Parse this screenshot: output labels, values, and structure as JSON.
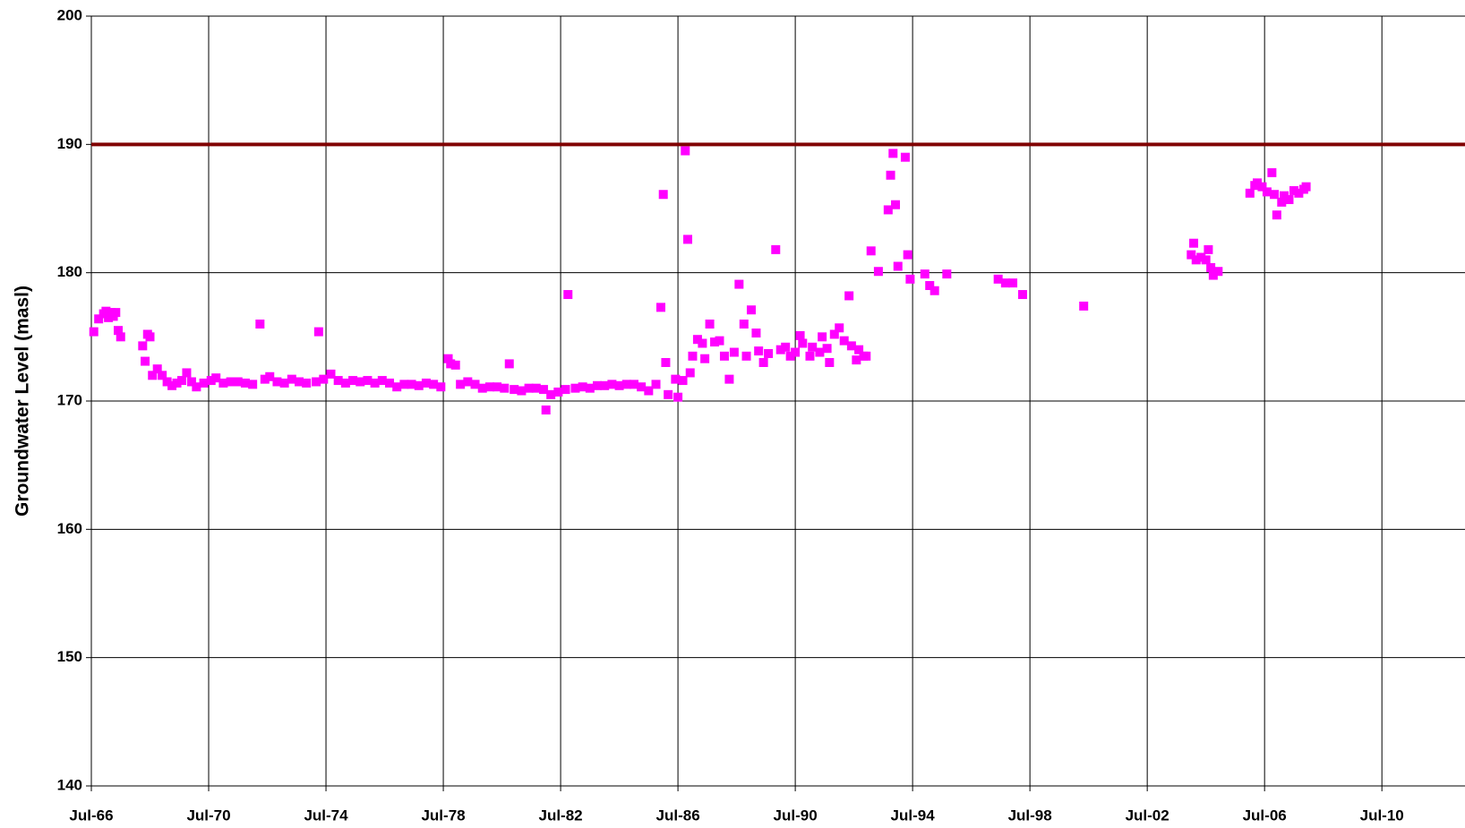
{
  "chart_data": {
    "type": "scatter",
    "y_label": "Groundwater Level (masl)",
    "color": "#ff00ff",
    "reference_line": {
      "value": 190,
      "color": "#800000"
    },
    "grid": true,
    "xlim": [
      "1966-07",
      "2013-05"
    ],
    "xticks": [
      {
        "value": "1966-07",
        "label": "Jul-66"
      },
      {
        "value": "1970-07",
        "label": "Jul-70"
      },
      {
        "value": "1974-07",
        "label": "Jul-74"
      },
      {
        "value": "1978-07",
        "label": "Jul-78"
      },
      {
        "value": "1982-07",
        "label": "Jul-82"
      },
      {
        "value": "1986-07",
        "label": "Jul-86"
      },
      {
        "value": "1990-07",
        "label": "Jul-90"
      },
      {
        "value": "1994-07",
        "label": "Jul-94"
      },
      {
        "value": "1998-07",
        "label": "Jul-98"
      },
      {
        "value": "2002-07",
        "label": "Jul-02"
      },
      {
        "value": "2006-07",
        "label": "Jul-06"
      },
      {
        "value": "2010-07",
        "label": "Jul-10"
      }
    ],
    "ylim": [
      140,
      200
    ],
    "yticks": [
      140,
      150,
      160,
      170,
      180,
      190,
      200
    ],
    "x": [
      "1966-08",
      "1966-10",
      "1966-12",
      "1967-01",
      "1967-02",
      "1967-03",
      "1967-04",
      "1967-05",
      "1967-06",
      "1967-07",
      "1968-04",
      "1968-05",
      "1968-06",
      "1968-07",
      "1968-08",
      "1968-10",
      "1968-12",
      "1969-02",
      "1969-04",
      "1969-06",
      "1969-08",
      "1969-10",
      "1969-12",
      "1970-02",
      "1970-05",
      "1970-08",
      "1970-10",
      "1971-01",
      "1971-04",
      "1971-07",
      "1971-10",
      "1972-01",
      "1972-04",
      "1972-06",
      "1972-08",
      "1972-11",
      "1973-02",
      "1973-05",
      "1973-08",
      "1973-11",
      "1974-03",
      "1974-04",
      "1974-06",
      "1974-09",
      "1974-12",
      "1975-03",
      "1975-06",
      "1975-09",
      "1975-12",
      "1976-03",
      "1976-06",
      "1976-09",
      "1976-12",
      "1977-03",
      "1977-06",
      "1977-09",
      "1977-12",
      "1978-03",
      "1978-06",
      "1978-09",
      "1978-10",
      "1978-12",
      "1979-02",
      "1979-05",
      "1979-08",
      "1979-11",
      "1980-02",
      "1980-05",
      "1980-08",
      "1980-10",
      "1980-12",
      "1981-03",
      "1981-06",
      "1981-09",
      "1981-12",
      "1982-01",
      "1982-03",
      "1982-06",
      "1982-09",
      "1982-10",
      "1983-01",
      "1983-04",
      "1983-07",
      "1983-10",
      "1984-01",
      "1984-04",
      "1984-07",
      "1984-10",
      "1985-01",
      "1985-04",
      "1985-07",
      "1985-10",
      "1985-12",
      "1986-01",
      "1986-02",
      "1986-03",
      "1986-06",
      "1986-07",
      "1986-09",
      "1986-10",
      "1986-11",
      "1986-12",
      "1987-01",
      "1987-03",
      "1987-05",
      "1987-06",
      "1987-08",
      "1987-10",
      "1987-12",
      "1988-02",
      "1988-04",
      "1988-06",
      "1988-08",
      "1988-10",
      "1988-11",
      "1989-01",
      "1989-03",
      "1989-04",
      "1989-06",
      "1989-08",
      "1989-11",
      "1990-01",
      "1990-03",
      "1990-05",
      "1990-07",
      "1990-09",
      "1990-10",
      "1991-01",
      "1991-02",
      "1991-05",
      "1991-06",
      "1991-08",
      "1991-09",
      "1991-11",
      "1992-01",
      "1992-03",
      "1992-05",
      "1992-06",
      "1992-08",
      "1992-09",
      "1992-11",
      "1992-12",
      "1993-02",
      "1993-05",
      "1993-09",
      "1993-10",
      "1993-11",
      "1993-12",
      "1994-01",
      "1994-04",
      "1994-05",
      "1994-06",
      "1994-12",
      "1995-02",
      "1995-04",
      "1995-09",
      "1997-06",
      "1997-09",
      "1997-12",
      "1998-04",
      "2000-05",
      "2004-01",
      "2004-02",
      "2004-03",
      "2004-05",
      "2004-07",
      "2004-08",
      "2004-09",
      "2004-10",
      "2004-12",
      "2006-01",
      "2006-03",
      "2006-04",
      "2006-06",
      "2006-08",
      "2006-10",
      "2006-11",
      "2006-12",
      "2007-02",
      "2007-03",
      "2007-05",
      "2007-07",
      "2007-09",
      "2007-11",
      "2007-12"
    ],
    "values": [
      175.4,
      176.4,
      176.8,
      177.0,
      176.5,
      176.9,
      176.6,
      176.9,
      175.5,
      175.0,
      174.3,
      173.1,
      175.2,
      175.0,
      172.0,
      172.5,
      172.0,
      171.5,
      171.2,
      171.4,
      171.6,
      172.2,
      171.5,
      171.1,
      171.4,
      171.6,
      171.8,
      171.4,
      171.5,
      171.5,
      171.4,
      171.3,
      176.0,
      171.7,
      171.9,
      171.5,
      171.4,
      171.7,
      171.5,
      171.4,
      171.5,
      175.4,
      171.7,
      172.1,
      171.6,
      171.4,
      171.6,
      171.5,
      171.6,
      171.4,
      171.6,
      171.4,
      171.1,
      171.3,
      171.3,
      171.2,
      171.4,
      171.3,
      171.1,
      173.3,
      172.9,
      172.8,
      171.3,
      171.5,
      171.3,
      171.0,
      171.1,
      171.1,
      171.0,
      172.9,
      170.9,
      170.8,
      171.0,
      171.0,
      170.9,
      169.3,
      170.5,
      170.7,
      170.9,
      178.3,
      171.0,
      171.1,
      171.0,
      171.2,
      171.2,
      171.3,
      171.2,
      171.3,
      171.3,
      171.1,
      170.8,
      171.3,
      177.3,
      186.1,
      173.0,
      170.5,
      171.7,
      170.3,
      171.6,
      189.5,
      182.6,
      172.2,
      173.5,
      174.8,
      174.5,
      173.3,
      176.0,
      174.6,
      174.7,
      173.5,
      171.7,
      173.8,
      179.1,
      176.0,
      173.5,
      177.1,
      175.3,
      173.9,
      173.0,
      173.7,
      181.8,
      174.0,
      174.2,
      173.5,
      173.8,
      175.1,
      174.5,
      173.5,
      174.2,
      173.8,
      175.0,
      174.1,
      173.0,
      175.2,
      175.7,
      174.7,
      178.2,
      174.3,
      173.2,
      174.0,
      173.5,
      173.5,
      181.7,
      180.1,
      184.9,
      187.6,
      189.3,
      185.3,
      180.5,
      189.0,
      181.4,
      179.5,
      179.9,
      179.0,
      178.6,
      179.9,
      179.5,
      179.2,
      179.2,
      178.3,
      177.4,
      181.4,
      182.3,
      181.0,
      181.2,
      181.0,
      181.8,
      180.4,
      179.8,
      180.1,
      186.2,
      186.8,
      187.0,
      186.7,
      186.3,
      187.8,
      186.1,
      184.5,
      185.5,
      186.0,
      185.7,
      186.4,
      186.2,
      186.5,
      186.7
    ]
  }
}
